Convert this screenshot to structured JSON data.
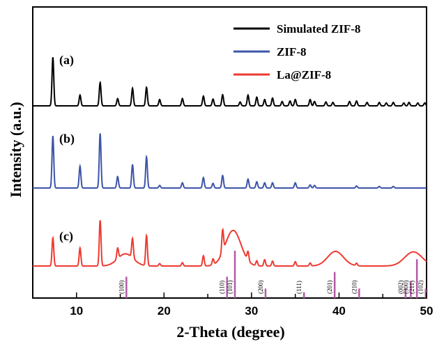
{
  "chart_data": {
    "type": "line",
    "xlabel": "2-Theta (degree)",
    "ylabel": "Intensity (a.u.)",
    "xlim": [
      5,
      50
    ],
    "xticks": [
      "10",
      "20",
      "30",
      "40",
      "50"
    ],
    "grid": false,
    "legend_position": "top-right",
    "panel_labels": [
      "(a)",
      "(b)",
      "(c)"
    ],
    "series": [
      {
        "name": "Simulated ZIF-8",
        "color": "#000000",
        "peaks": [
          [
            7.3,
            1.0
          ],
          [
            10.4,
            0.22
          ],
          [
            12.7,
            0.48
          ],
          [
            14.7,
            0.15
          ],
          [
            16.4,
            0.36
          ],
          [
            18.0,
            0.38
          ],
          [
            19.5,
            0.13
          ],
          [
            22.1,
            0.15
          ],
          [
            24.5,
            0.2
          ],
          [
            25.6,
            0.14
          ],
          [
            26.7,
            0.23
          ],
          [
            28.7,
            0.08
          ],
          [
            29.6,
            0.22
          ],
          [
            30.6,
            0.18
          ],
          [
            31.5,
            0.13
          ],
          [
            32.4,
            0.16
          ],
          [
            33.5,
            0.09
          ],
          [
            34.4,
            0.1
          ],
          [
            35.0,
            0.13
          ],
          [
            36.7,
            0.13
          ],
          [
            37.2,
            0.09
          ],
          [
            38.5,
            0.08
          ],
          [
            39.3,
            0.07
          ],
          [
            41.2,
            0.09
          ],
          [
            42.0,
            0.1
          ],
          [
            43.2,
            0.07
          ],
          [
            44.6,
            0.07
          ],
          [
            45.4,
            0.06
          ],
          [
            46.2,
            0.07
          ],
          [
            47.4,
            0.06
          ],
          [
            48.0,
            0.07
          ],
          [
            49.0,
            0.06
          ],
          [
            49.8,
            0.06
          ]
        ]
      },
      {
        "name": "ZIF-8",
        "color": "#3c54a8",
        "peaks": [
          [
            7.3,
            1.0
          ],
          [
            10.4,
            0.42
          ],
          [
            12.7,
            1.05
          ],
          [
            14.7,
            0.22
          ],
          [
            16.4,
            0.45
          ],
          [
            18.0,
            0.6
          ],
          [
            19.5,
            0.05
          ],
          [
            22.1,
            0.1
          ],
          [
            24.5,
            0.2
          ],
          [
            25.6,
            0.09
          ],
          [
            26.7,
            0.24
          ],
          [
            29.6,
            0.17
          ],
          [
            30.6,
            0.12
          ],
          [
            31.5,
            0.1
          ],
          [
            32.4,
            0.1
          ],
          [
            35.0,
            0.1
          ],
          [
            36.7,
            0.06
          ],
          [
            37.2,
            0.05
          ],
          [
            42.0,
            0.04
          ],
          [
            44.6,
            0.03
          ],
          [
            46.2,
            0.03
          ]
        ]
      },
      {
        "name": "La@ZIF-8",
        "color": "#ee3a30",
        "peaks": [
          [
            7.3,
            0.58
          ],
          [
            10.4,
            0.37
          ],
          [
            12.7,
            0.94
          ],
          [
            14.7,
            0.22
          ],
          [
            16.4,
            0.4
          ],
          [
            18.0,
            0.62
          ],
          [
            19.5,
            0.05
          ],
          [
            22.1,
            0.07
          ],
          [
            24.5,
            0.21
          ],
          [
            25.6,
            0.12
          ],
          [
            26.7,
            0.45
          ],
          [
            29.6,
            0.18
          ],
          [
            30.6,
            0.1
          ],
          [
            31.5,
            0.13
          ],
          [
            32.4,
            0.1
          ],
          [
            35.0,
            0.09
          ],
          [
            36.7,
            0.06
          ],
          [
            42.0,
            0.05
          ]
        ],
        "broad_peaks": [
          [
            15.6,
            0.25,
            0.9
          ],
          [
            27.9,
            0.73,
            0.9
          ],
          [
            39.6,
            0.3,
            0.9
          ],
          [
            48.5,
            0.29,
            1.0
          ]
        ]
      }
    ],
    "reference_lines": {
      "color": "#b25aa8",
      "lines": [
        {
          "x": 15.7,
          "label": "(100)",
          "height": 0.45
        },
        {
          "x": 27.2,
          "label": "(110)",
          "height": 0.45
        },
        {
          "x": 28.1,
          "label": "(101)",
          "height": 1.0
        },
        {
          "x": 31.6,
          "label": "(200)",
          "height": 0.2
        },
        {
          "x": 36.0,
          "label": "(111)",
          "height": 0.12
        },
        {
          "x": 39.5,
          "label": "(201)",
          "height": 0.55
        },
        {
          "x": 42.3,
          "label": "(210)",
          "height": 0.2
        },
        {
          "x": 47.6,
          "label": "(002)",
          "height": 0.2
        },
        {
          "x": 48.2,
          "label": "(300)",
          "height": 0.35
        },
        {
          "x": 48.9,
          "label": "(211)",
          "height": 0.82
        },
        {
          "x": 49.9,
          "label": "(102)",
          "height": 0.2
        }
      ]
    }
  }
}
